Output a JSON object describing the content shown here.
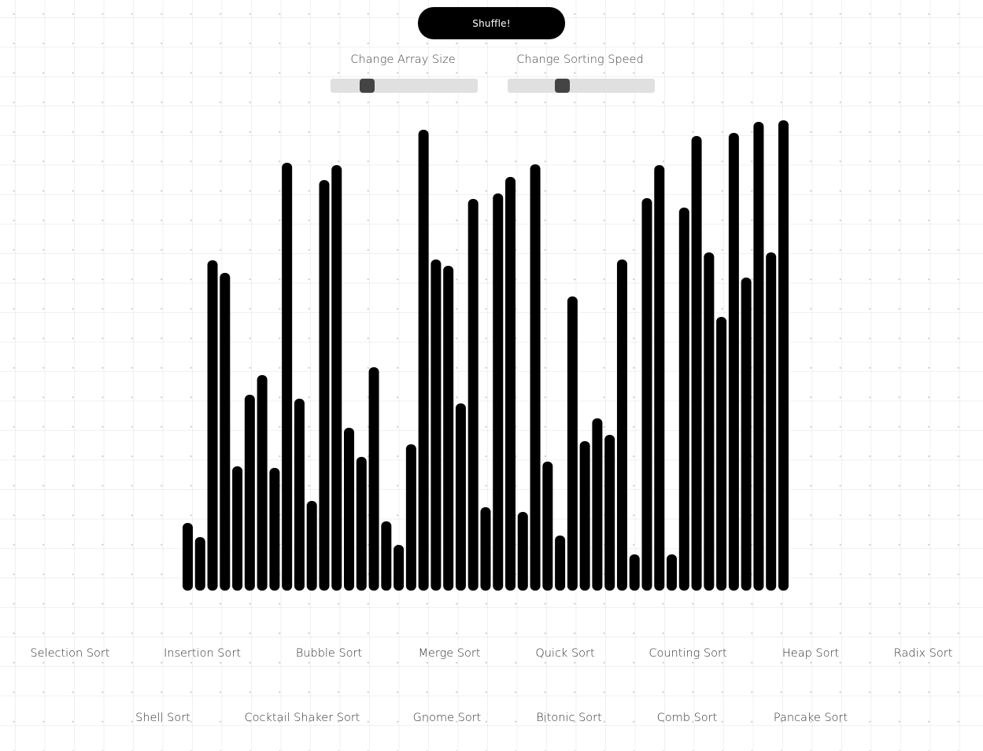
{
  "controls": {
    "shuffle_label": "Shuffle!",
    "array_size_label": "Change Array Size",
    "speed_label": "Change Sorting Speed",
    "array_size_value": 0.22,
    "speed_value": 0.36
  },
  "array": {
    "bar_color": "#000000",
    "values": [
      86,
      68,
      420,
      404,
      158,
      249,
      274,
      156,
      544,
      244,
      114,
      522,
      541,
      207,
      170,
      284,
      88,
      58,
      186,
      586,
      421,
      413,
      238,
      498,
      106,
      505,
      526,
      100,
      542,
      164,
      70,
      374,
      190,
      219,
      198,
      421,
      46,
      499,
      541,
      46,
      487,
      578,
      430,
      348,
      582,
      398,
      596,
      430,
      598
    ]
  },
  "algorithms": {
    "row1": [
      "Selection Sort",
      "Insertion Sort",
      "Bubble Sort",
      "Merge Sort",
      "Quick Sort",
      "Counting Sort",
      "Heap Sort",
      "Radix Sort"
    ],
    "row2": [
      "Shell Sort",
      "Cocktail Shaker Sort",
      "Gnome Sort",
      "Bitonic Sort",
      "Comb Sort",
      "Pancake Sort"
    ]
  }
}
